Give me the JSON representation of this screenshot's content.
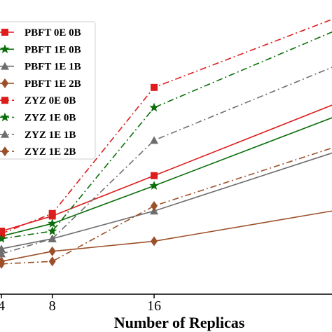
{
  "chart_data": {
    "type": "line",
    "xlabel": "Number of Replicas",
    "x_ticks": [
      4,
      8,
      16
    ],
    "xlim": [
      4,
      30.5
    ],
    "ylim": [
      0,
      100
    ],
    "legend_placement": "top-left",
    "grid": false,
    "x": [
      4,
      8,
      16,
      30
    ],
    "series": [
      {
        "name": "PBFT 0E 0B",
        "values": [
          25,
          31,
          47,
          75
        ],
        "color": "#dd1c1c",
        "linestyle": "solid",
        "marker": "square"
      },
      {
        "name": "PBFT 1E 0B",
        "values": [
          23,
          28,
          43,
          70
        ],
        "color": "#0a6e0a",
        "linestyle": "solid",
        "marker": "star"
      },
      {
        "name": "PBFT 1E 1B",
        "values": [
          18,
          22,
          33,
          56
        ],
        "color": "#6e6e6e",
        "linestyle": "solid",
        "marker": "triangle"
      },
      {
        "name": "PBFT 1E 2B",
        "values": [
          13,
          17,
          21,
          33
        ],
        "color": "#9c4f28",
        "linestyle": "solid",
        "marker": "diamond"
      },
      {
        "name": "ZYZ 0E 0B",
        "values": [
          24,
          32,
          82,
          109
        ],
        "color": "#dd1c1c",
        "linestyle": "dashdot",
        "marker": "square"
      },
      {
        "name": "ZYZ 1E 0B",
        "values": [
          22,
          25,
          74,
          104
        ],
        "color": "#0a6e0a",
        "linestyle": "dashdot",
        "marker": "star"
      },
      {
        "name": "ZYZ 1E 1B",
        "values": [
          16,
          22,
          61,
          90
        ],
        "color": "#6e6e6e",
        "linestyle": "dashdot",
        "marker": "triangle"
      },
      {
        "name": "ZYZ 1E 2B",
        "values": [
          12,
          13,
          35,
          58
        ],
        "color": "#9c4f28",
        "linestyle": "dashdot",
        "marker": "diamond"
      }
    ]
  }
}
